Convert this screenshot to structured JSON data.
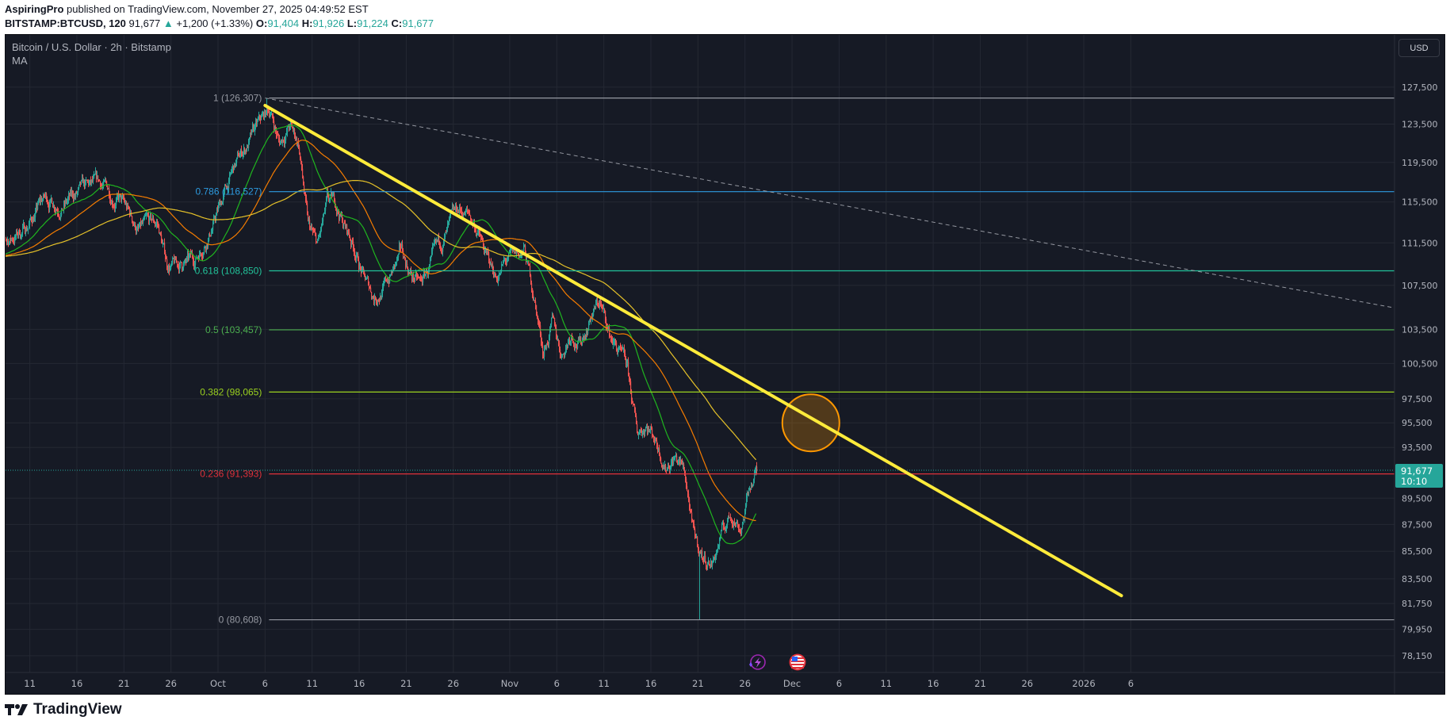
{
  "header": {
    "author": "AspiringPro",
    "published_text": "published on TradingView.com, November 27, 2025 04:49:52 EST",
    "symbol": "BITSTAMP:BTCUSD, 120",
    "last": "91,677",
    "change": "+1,200 (+1.33%)",
    "o_label": "O:",
    "o": "91,404",
    "h_label": "H:",
    "h": "91,926",
    "l_label": "L:",
    "l": "91,224",
    "c_label": "C:",
    "c": "91,677"
  },
  "legend": {
    "title": "Bitcoin / U.S. Dollar · 2h · Bitstamp",
    "indicator": "MA"
  },
  "currency_button": "USD",
  "logo_text": "TradingView",
  "colors": {
    "background": "#161a25",
    "up": "#26a69a",
    "down": "#ef5350",
    "trendline": "#ffeb3b",
    "circle": "#ff9800",
    "ma_fast": "#1fb51f",
    "ma_mid": "#f57c00",
    "ma_slow": "#e6c229"
  },
  "icons": [
    "lightning-event-icon",
    "us-flag-event-icon"
  ],
  "chart_data": {
    "type": "candlestick",
    "interval": "2h",
    "y_scale": "log",
    "grid": true,
    "ylim": [
      77500,
      132000
    ],
    "price_axis_labels": [
      "127,500",
      "123,500",
      "119,500",
      "115,500",
      "111,500",
      "107,500",
      "103,500",
      "100,500",
      "97,500",
      "95,500",
      "93,500",
      "89,500",
      "87,500",
      "85,500",
      "83,500",
      "81,750",
      "79,950",
      "78,150"
    ],
    "time_axis_labels": [
      {
        "label": "11",
        "date": "2025-09-11"
      },
      {
        "label": "16",
        "date": "2025-09-16"
      },
      {
        "label": "21",
        "date": "2025-09-21"
      },
      {
        "label": "26",
        "date": "2025-09-26"
      },
      {
        "label": "Oct",
        "date": "2025-10-01"
      },
      {
        "label": "6",
        "date": "2025-10-06"
      },
      {
        "label": "11",
        "date": "2025-10-11"
      },
      {
        "label": "16",
        "date": "2025-10-16"
      },
      {
        "label": "21",
        "date": "2025-10-21"
      },
      {
        "label": "26",
        "date": "2025-10-26"
      },
      {
        "label": "Nov",
        "date": "2025-11-01"
      },
      {
        "label": "6",
        "date": "2025-11-06"
      },
      {
        "label": "11",
        "date": "2025-11-11"
      },
      {
        "label": "16",
        "date": "2025-11-16"
      },
      {
        "label": "21",
        "date": "2025-11-21"
      },
      {
        "label": "26",
        "date": "2025-11-26"
      },
      {
        "label": "Dec",
        "date": "2025-12-01"
      },
      {
        "label": "6",
        "date": "2025-12-06"
      },
      {
        "label": "11",
        "date": "2025-12-11"
      },
      {
        "label": "16",
        "date": "2025-12-16"
      },
      {
        "label": "21",
        "date": "2025-12-21"
      },
      {
        "label": "26",
        "date": "2025-12-26"
      },
      {
        "label": "2026",
        "date": "2026-01-01"
      },
      {
        "label": "6",
        "date": "2026-01-06"
      }
    ],
    "current_price": {
      "value": 91677,
      "label": "91,677",
      "countdown": "10:10"
    },
    "approx_daily_closes": [
      [
        "2025-09-07",
        111200
      ],
      [
        "2025-09-08",
        111500
      ],
      [
        "2025-09-10",
        113000
      ],
      [
        "2025-09-12",
        115800
      ],
      [
        "2025-09-14",
        115300
      ],
      [
        "2025-09-16",
        116500
      ],
      [
        "2025-09-18",
        117100
      ],
      [
        "2025-09-20",
        115800
      ],
      [
        "2025-09-22",
        112700
      ],
      [
        "2025-09-24",
        113300
      ],
      [
        "2025-09-25",
        109500
      ],
      [
        "2025-09-26",
        109200
      ],
      [
        "2025-09-28",
        109800
      ],
      [
        "2025-09-30",
        113500
      ],
      [
        "2025-10-01",
        116000
      ],
      [
        "2025-10-02",
        118500
      ],
      [
        "2025-10-03",
        120500
      ],
      [
        "2025-10-05",
        123500
      ],
      [
        "2025-10-06",
        125000
      ],
      [
        "2025-10-07",
        121500
      ],
      [
        "2025-10-08",
        123300
      ],
      [
        "2025-10-09",
        121500
      ],
      [
        "2025-10-10",
        113000
      ],
      [
        "2025-10-11",
        111000
      ],
      [
        "2025-10-12",
        115000
      ],
      [
        "2025-10-13",
        115200
      ],
      [
        "2025-10-14",
        113000
      ],
      [
        "2025-10-15",
        111000
      ],
      [
        "2025-10-16",
        108000
      ],
      [
        "2025-10-17",
        106500
      ],
      [
        "2025-10-18",
        107200
      ],
      [
        "2025-10-20",
        110500
      ],
      [
        "2025-10-21",
        108500
      ],
      [
        "2025-10-22",
        107500
      ],
      [
        "2025-10-24",
        111000
      ],
      [
        "2025-10-26",
        114500
      ],
      [
        "2025-10-27",
        114200
      ],
      [
        "2025-10-28",
        112900
      ],
      [
        "2025-10-29",
        110000
      ],
      [
        "2025-10-30",
        108300
      ],
      [
        "2025-10-31",
        109600
      ],
      [
        "2025-11-01",
        110000
      ],
      [
        "2025-11-02",
        110600
      ],
      [
        "2025-11-03",
        106500
      ],
      [
        "2025-11-04",
        101500
      ],
      [
        "2025-11-05",
        103900
      ],
      [
        "2025-11-06",
        101300
      ],
      [
        "2025-11-07",
        103400
      ],
      [
        "2025-11-08",
        102300
      ],
      [
        "2025-11-09",
        104700
      ],
      [
        "2025-11-10",
        106000
      ],
      [
        "2025-11-11",
        103000
      ],
      [
        "2025-11-12",
        101600
      ],
      [
        "2025-11-13",
        99700
      ],
      [
        "2025-11-14",
        94500
      ],
      [
        "2025-11-15",
        95600
      ],
      [
        "2025-11-16",
        94200
      ],
      [
        "2025-11-17",
        92200
      ],
      [
        "2025-11-18",
        92900
      ],
      [
        "2025-11-19",
        91500
      ],
      [
        "2025-11-20",
        86600
      ],
      [
        "2025-11-21",
        85000
      ],
      [
        "2025-11-22",
        84700
      ],
      [
        "2025-11-23",
        86800
      ],
      [
        "2025-11-24",
        88300
      ],
      [
        "2025-11-25",
        87400
      ],
      [
        "2025-11-26",
        90500
      ],
      [
        "2025-11-27T04:00",
        91677
      ]
    ],
    "extremes": {
      "high": {
        "date": "2025-10-06",
        "value": 126307
      },
      "low": {
        "date": "2025-11-21",
        "value": 80608
      }
    },
    "moving_averages": [
      {
        "period": 50,
        "color": "#1fb51f"
      },
      {
        "period": 100,
        "color": "#f57c00"
      },
      {
        "period": 200,
        "color": "#e6c229"
      }
    ],
    "fibonacci": {
      "start_date": "2025-10-06",
      "levels": [
        {
          "ratio": "1",
          "price": 126307,
          "label": "1 (126,307)",
          "color": "#9598a1"
        },
        {
          "ratio": "0.786",
          "price": 116527,
          "label": "0.786 (116,527)",
          "color": "#2d9be0"
        },
        {
          "ratio": "0.618",
          "price": 108850,
          "label": "0.618 (108,850)",
          "color": "#22c39a"
        },
        {
          "ratio": "0.5",
          "price": 103457,
          "label": "0.5 (103,457)",
          "color": "#4caf50"
        },
        {
          "ratio": "0.382",
          "price": 98065,
          "label": "0.382 (98,065)",
          "color": "#9bd11f"
        },
        {
          "ratio": "0.236",
          "price": 91393,
          "label": "0.236 (91,393)",
          "color": "#e0303a"
        },
        {
          "ratio": "0",
          "price": 80608,
          "label": "0 (80,608)",
          "color": "#9598a1"
        }
      ]
    },
    "trendline": {
      "from": {
        "date": "2025-10-06",
        "price": 125500
      },
      "to": {
        "date": "2026-01-05",
        "price": 82300
      },
      "color": "#ffeb3b"
    },
    "dashed_line": {
      "from": {
        "date": "2025-10-06",
        "price": 126307
      },
      "to": {
        "date": "2026-02-07",
        "price": 104800
      }
    },
    "circle_marker": {
      "date": "2025-12-03",
      "price": 95500,
      "color": "#ff9800"
    }
  }
}
